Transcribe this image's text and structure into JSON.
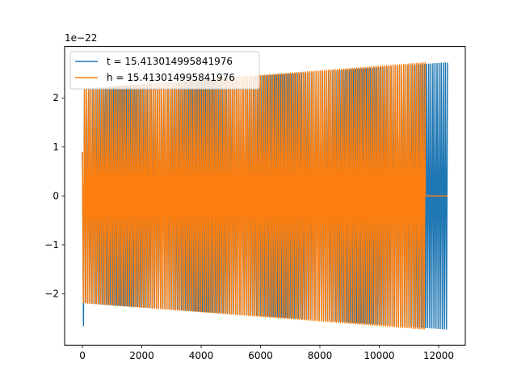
{
  "chart_data": {
    "type": "line",
    "title": "",
    "xlabel": "",
    "ylabel": "",
    "xlim": [
      -600,
      12900
    ],
    "ylim": [
      -3.05,
      3.05
    ],
    "y_offset_label": "1e−22",
    "x_ticks": [
      0,
      2000,
      4000,
      6000,
      8000,
      10000,
      12000
    ],
    "x_tick_labels": [
      "0",
      "2000",
      "4000",
      "6000",
      "8000",
      "10000",
      "12000"
    ],
    "y_ticks": [
      -2,
      -1,
      0,
      1,
      2
    ],
    "y_tick_labels": [
      "−2",
      "−1",
      "0",
      "1",
      "2"
    ],
    "grid": false,
    "legend_position": "top-left",
    "series": [
      {
        "name": "t = 15.413014995841976",
        "color": "#1f77b4",
        "x_start": 0,
        "x_end": 12300,
        "cycles": 175,
        "amplitude_start": 2.18,
        "amplitude_end": 2.72,
        "initial_min": -2.65
      },
      {
        "name": "h = 15.413014995841976",
        "color": "#ff7f0e",
        "x_start": 0,
        "x_end": 11550,
        "cycles": 160,
        "amplitude_start": 2.18,
        "amplitude_end": 2.72,
        "flat_until": 12300,
        "flat_value": 0
      }
    ]
  }
}
